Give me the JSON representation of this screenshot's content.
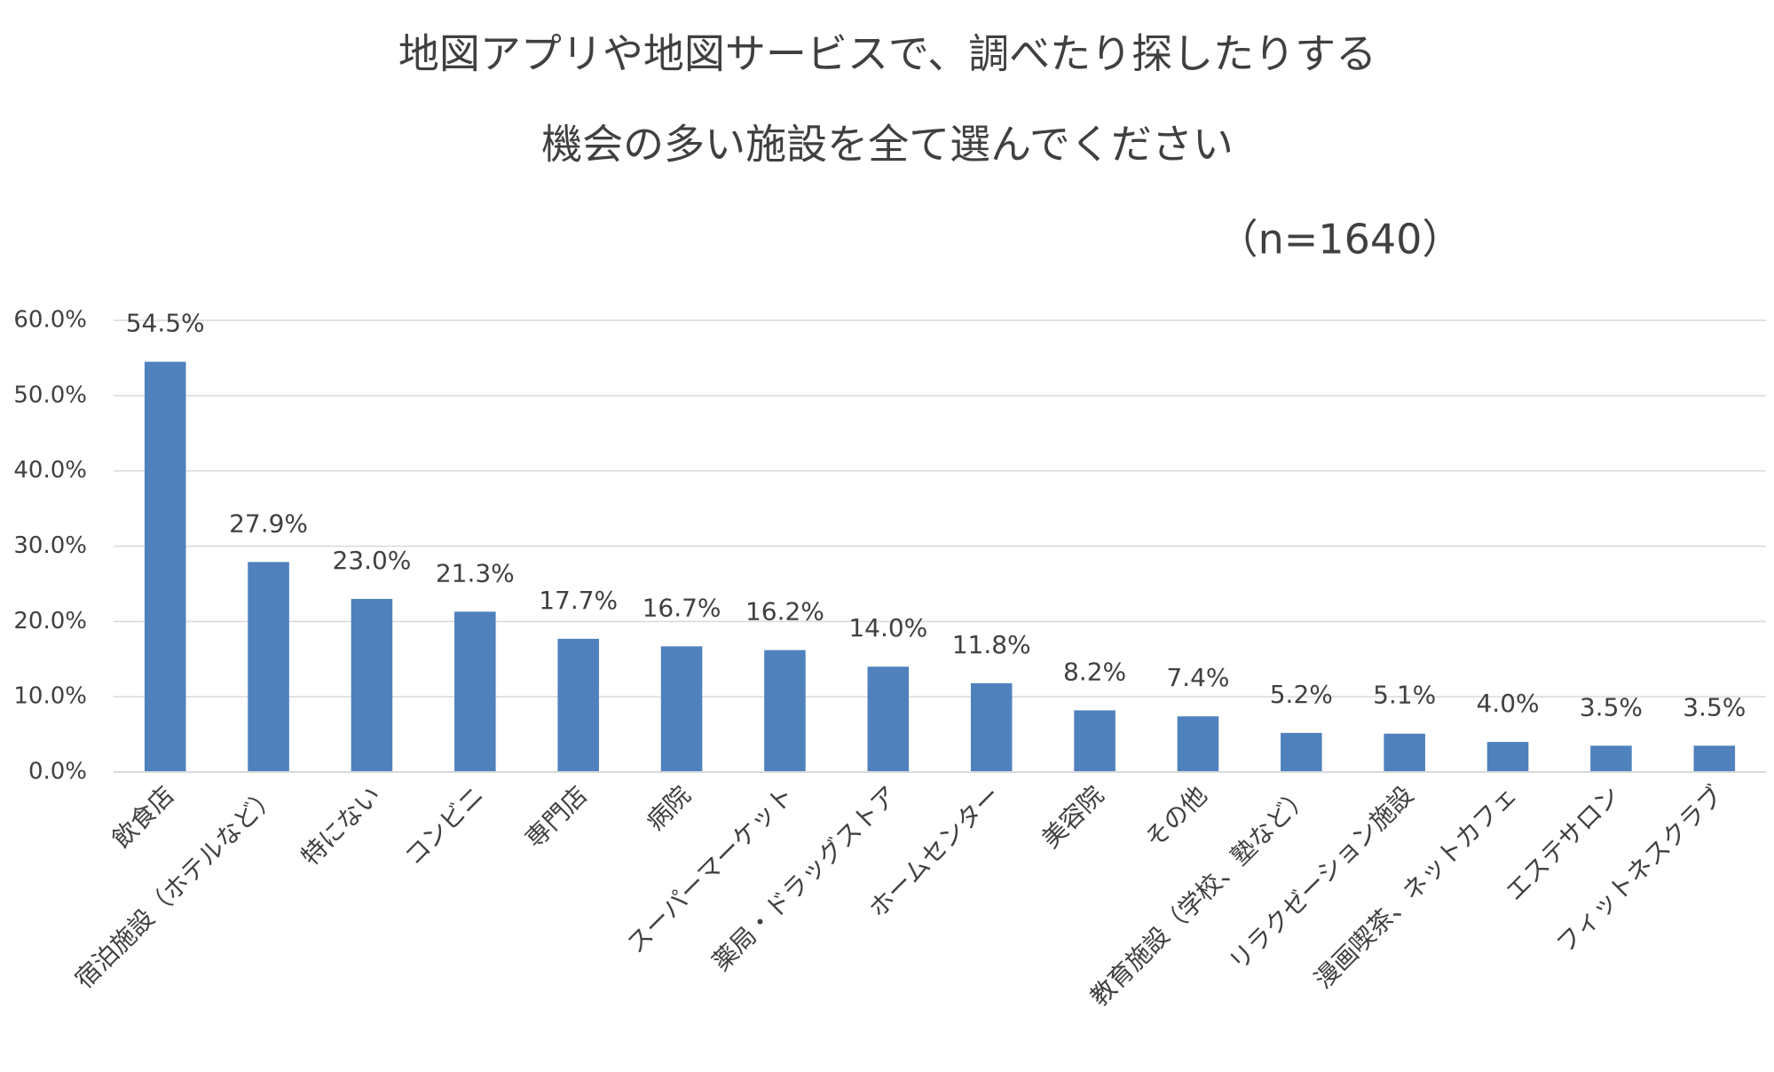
{
  "chart_data": {
    "type": "bar",
    "title": [
      "地図アプリや地図サービスで、調べたり探したりする",
      "機会の多い施設を全て選んでください"
    ],
    "subtitle": "（n=1640）",
    "categories": [
      "飲食店",
      "宿泊施設（ホテルなど）",
      "特にない",
      "コンビニ",
      "専門店",
      "病院",
      "スーパーマーケット",
      "薬局・ドラッグストア",
      "ホームセンター",
      "美容院",
      "その他",
      "教育施設（学校、塾など）",
      "リラクゼーション施設",
      "漫画喫茶、ネットカフェ",
      "エステサロン",
      "フィットネスクラブ"
    ],
    "values": [
      54.5,
      27.9,
      23.0,
      21.3,
      17.7,
      16.7,
      16.2,
      14.0,
      11.8,
      8.2,
      7.4,
      5.2,
      5.1,
      4.0,
      3.5,
      3.5
    ],
    "value_labels": [
      "54.5%",
      "27.9%",
      "23.0%",
      "21.3%",
      "17.7%",
      "16.7%",
      "16.2%",
      "14.0%",
      "11.8%",
      "8.2%",
      "7.4%",
      "5.2%",
      "5.1%",
      "4.0%",
      "3.5%",
      "3.5%"
    ],
    "color": "#4f81bd",
    "ylim": [
      0,
      60
    ],
    "yticks": [
      {
        "value": 0,
        "label": "0.0%"
      },
      {
        "value": 10,
        "label": "10.0%"
      },
      {
        "value": 20,
        "label": "20.0%"
      },
      {
        "value": 30,
        "label": "30.0%"
      },
      {
        "value": 40,
        "label": "40.0%"
      },
      {
        "value": 50,
        "label": "50.0%"
      },
      {
        "value": 60,
        "label": "60.0%"
      }
    ],
    "grid": true
  }
}
